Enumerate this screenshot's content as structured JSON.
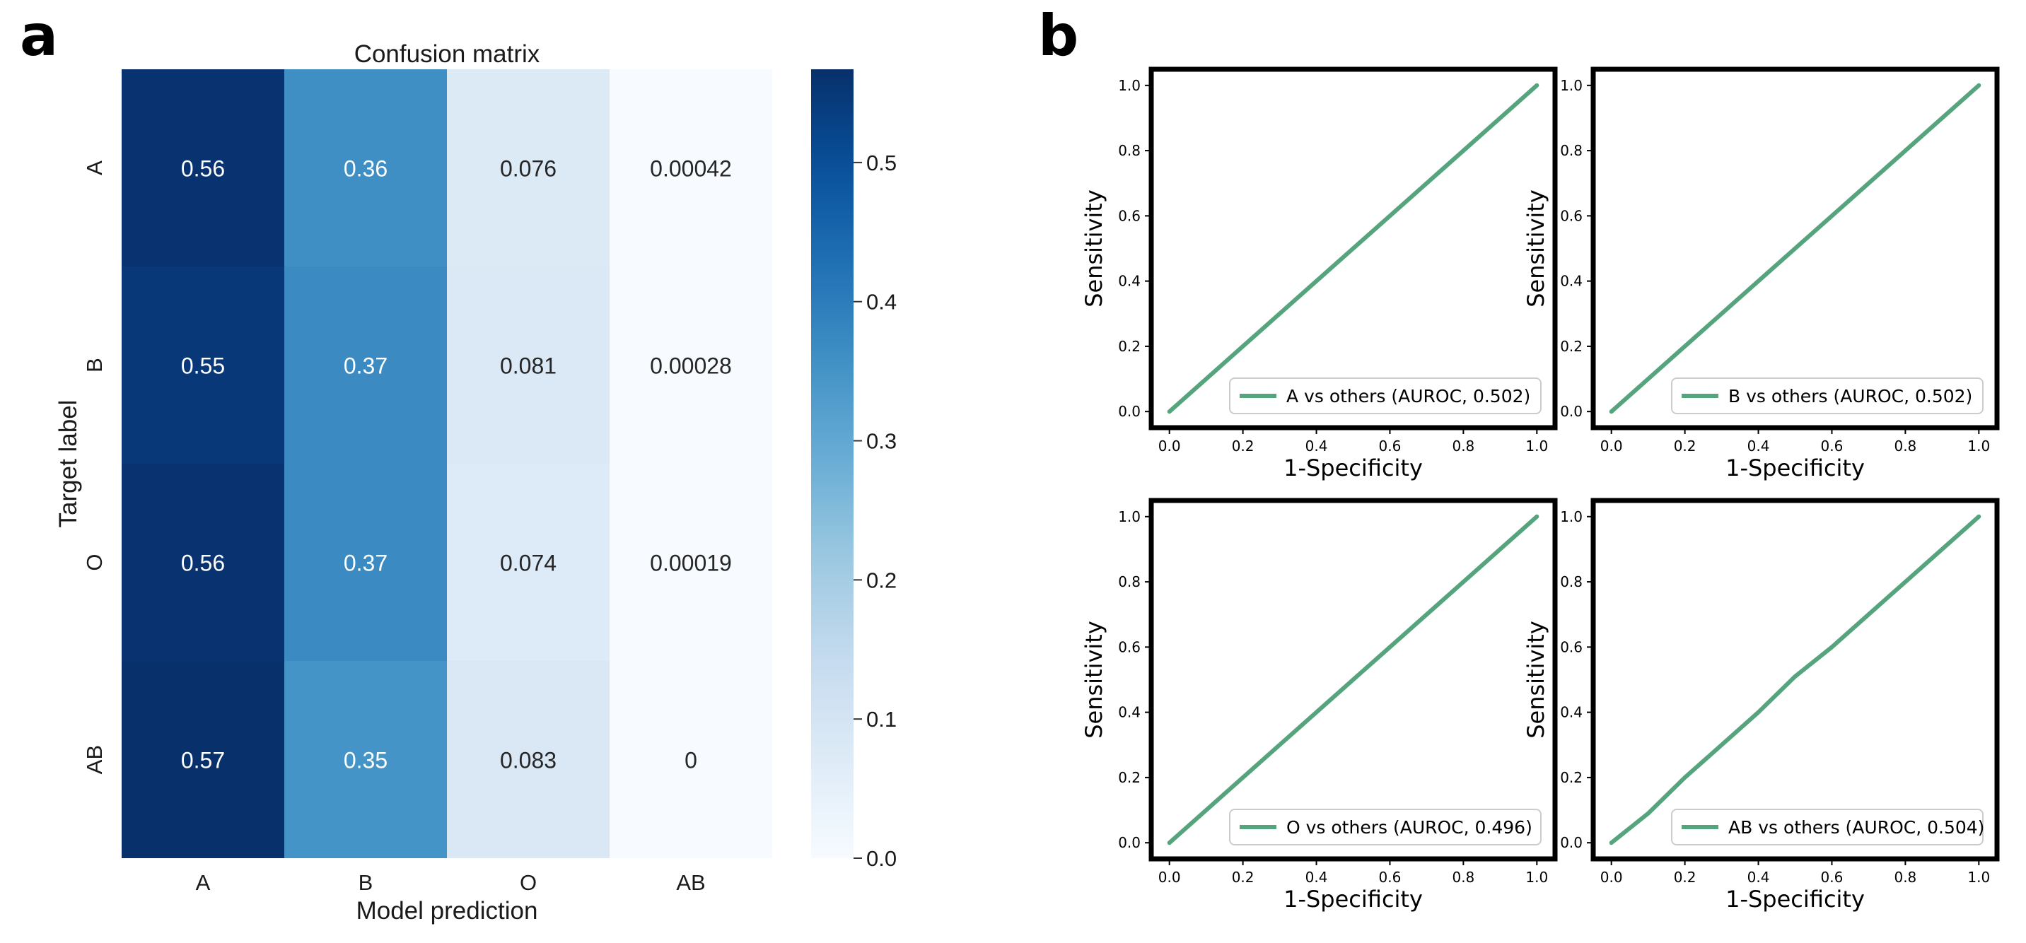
{
  "panel_a": {
    "letter": "a"
  },
  "panel_b": {
    "letter": "b"
  },
  "colors": {
    "roc_line": "#55a47d",
    "heat_stops": [
      "#f7fbff",
      "#deebf7",
      "#c6dbef",
      "#9ecae1",
      "#6baed6",
      "#4292c6",
      "#2171b5",
      "#08519c",
      "#08306b"
    ]
  },
  "chart_data": [
    {
      "type": "heatmap",
      "title": "Confusion matrix",
      "xlabel": "Model prediction",
      "ylabel": "Target label",
      "x_categories": [
        "A",
        "B",
        "O",
        "AB"
      ],
      "y_categories": [
        "A",
        "B",
        "O",
        "AB"
      ],
      "values": [
        [
          0.56,
          0.36,
          0.076,
          0.00042
        ],
        [
          0.55,
          0.37,
          0.081,
          0.00028
        ],
        [
          0.56,
          0.37,
          0.074,
          0.00019
        ],
        [
          0.57,
          0.35,
          0.083,
          0
        ]
      ],
      "cell_labels": [
        [
          "0.56",
          "0.36",
          "0.076",
          "0.00042"
        ],
        [
          "0.55",
          "0.37",
          "0.081",
          "0.00028"
        ],
        [
          "0.56",
          "0.37",
          "0.074",
          "0.00019"
        ],
        [
          "0.57",
          "0.35",
          "0.083",
          "0"
        ]
      ],
      "colorbar": {
        "range": [
          0,
          0.567
        ],
        "ticks": [
          0.0,
          0.1,
          0.2,
          0.3,
          0.4,
          0.5
        ],
        "tick_labels": [
          "0.0",
          "0.1",
          "0.2",
          "0.3",
          "0.4",
          "0.5"
        ]
      }
    },
    {
      "type": "line",
      "title": "",
      "xlabel": "1-Specificity",
      "ylabel": "Sensitivity",
      "xlim": [
        0,
        1
      ],
      "ylim": [
        0,
        1
      ],
      "ticks": [
        0.0,
        0.2,
        0.4,
        0.6,
        0.8,
        1.0
      ],
      "tick_labels": [
        "0.0",
        "0.2",
        "0.4",
        "0.6",
        "0.8",
        "1.0"
      ],
      "legend_position": "bottom-right",
      "series": [
        {
          "name": "A vs others (AUROC, 0.502)",
          "x": [
            0,
            0.2,
            0.4,
            0.6,
            0.8,
            1.0
          ],
          "y": [
            0,
            0.2,
            0.4,
            0.6,
            0.8,
            1.0
          ]
        }
      ]
    },
    {
      "type": "line",
      "title": "",
      "xlabel": "1-Specificity",
      "ylabel": "Sensitivity",
      "xlim": [
        0,
        1
      ],
      "ylim": [
        0,
        1
      ],
      "ticks": [
        0.0,
        0.2,
        0.4,
        0.6,
        0.8,
        1.0
      ],
      "tick_labels": [
        "0.0",
        "0.2",
        "0.4",
        "0.6",
        "0.8",
        "1.0"
      ],
      "legend_position": "bottom-right",
      "series": [
        {
          "name": "B vs others (AUROC, 0.502)",
          "x": [
            0,
            0.2,
            0.4,
            0.6,
            0.8,
            1.0
          ],
          "y": [
            0,
            0.2,
            0.4,
            0.6,
            0.8,
            1.0
          ]
        }
      ]
    },
    {
      "type": "line",
      "title": "",
      "xlabel": "1-Specificity",
      "ylabel": "Sensitivity",
      "xlim": [
        0,
        1
      ],
      "ylim": [
        0,
        1
      ],
      "ticks": [
        0.0,
        0.2,
        0.4,
        0.6,
        0.8,
        1.0
      ],
      "tick_labels": [
        "0.0",
        "0.2",
        "0.4",
        "0.6",
        "0.8",
        "1.0"
      ],
      "legend_position": "bottom-right",
      "series": [
        {
          "name": "O vs others (AUROC, 0.496)",
          "x": [
            0,
            0.2,
            0.4,
            0.6,
            0.8,
            1.0
          ],
          "y": [
            0,
            0.2,
            0.4,
            0.6,
            0.8,
            1.0
          ]
        }
      ]
    },
    {
      "type": "line",
      "title": "",
      "xlabel": "1-Specificity",
      "ylabel": "Sensitivity",
      "xlim": [
        0,
        1
      ],
      "ylim": [
        0,
        1
      ],
      "ticks": [
        0.0,
        0.2,
        0.4,
        0.6,
        0.8,
        1.0
      ],
      "tick_labels": [
        "0.0",
        "0.2",
        "0.4",
        "0.6",
        "0.8",
        "1.0"
      ],
      "legend_position": "bottom-right",
      "series": [
        {
          "name": "AB vs others (AUROC, 0.504)",
          "x": [
            0,
            0.1,
            0.2,
            0.3,
            0.4,
            0.5,
            0.6,
            0.7,
            0.8,
            0.9,
            1.0
          ],
          "y": [
            0,
            0.09,
            0.2,
            0.3,
            0.4,
            0.51,
            0.6,
            0.7,
            0.8,
            0.9,
            1.0
          ]
        }
      ]
    }
  ]
}
